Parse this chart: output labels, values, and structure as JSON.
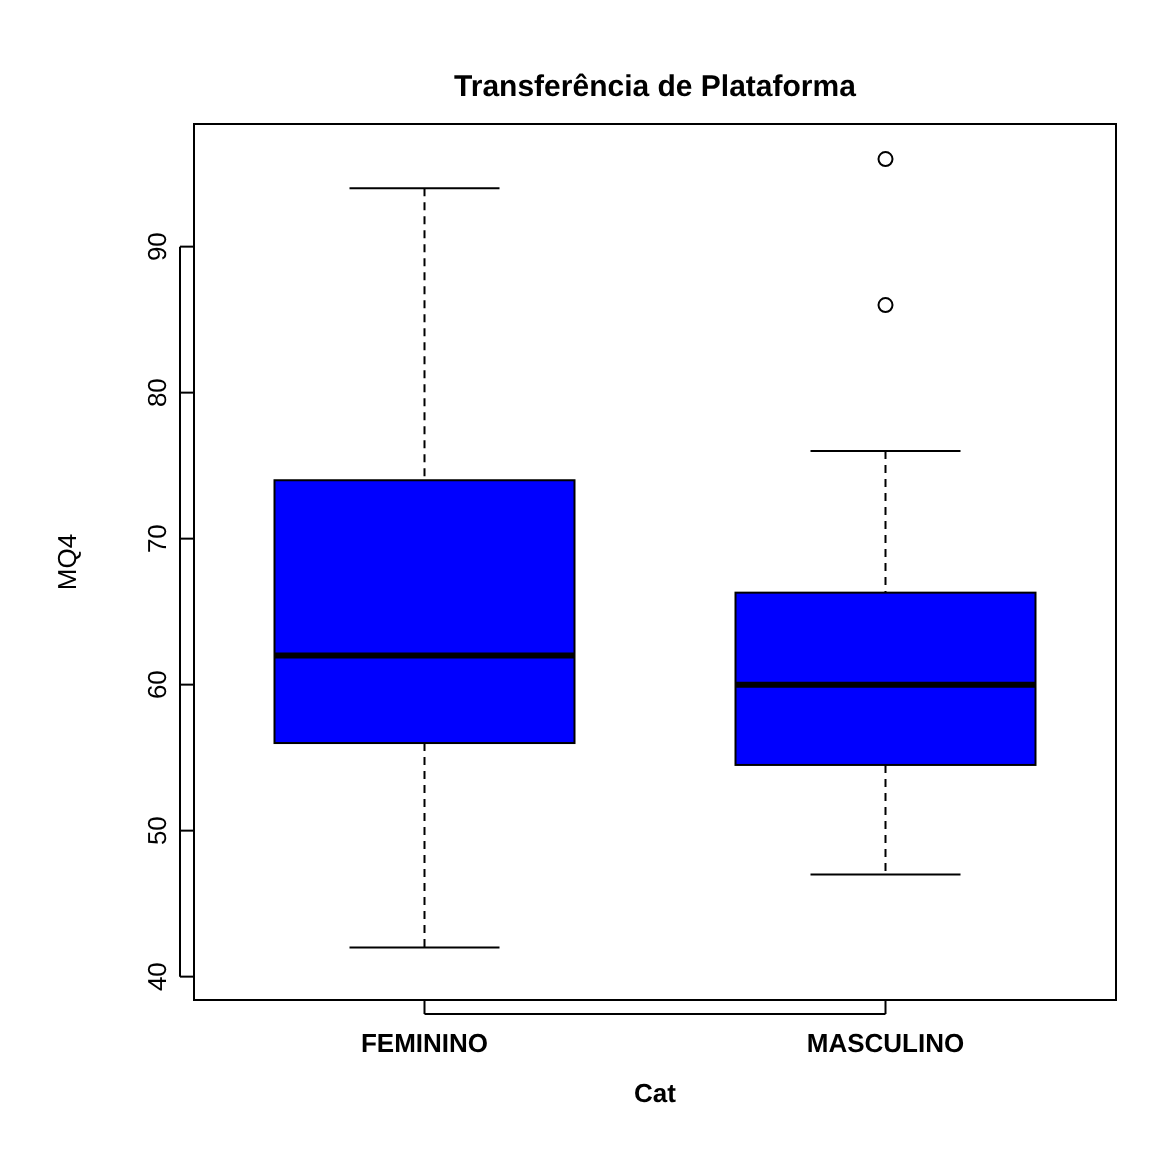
{
  "chart_data": {
    "type": "box",
    "title": "Transferência de Plataforma",
    "xlabel": "Cat",
    "ylabel": "MQ4",
    "categories": [
      "FEMININO",
      "MASCULINO"
    ],
    "color": "#0000ff",
    "boxes": [
      {
        "low": 42,
        "q1": 56,
        "median": 62,
        "q3": 74,
        "high": 94
      },
      {
        "low": 47,
        "q1": 54.5,
        "median": 60,
        "q3": 66.3,
        "high": 76,
        "outliers": [
          86,
          96
        ]
      }
    ],
    "ylim": [
      38.4,
      98.4
    ],
    "yticks": [
      40,
      50,
      60,
      70,
      80,
      90
    ],
    "grid": false
  }
}
